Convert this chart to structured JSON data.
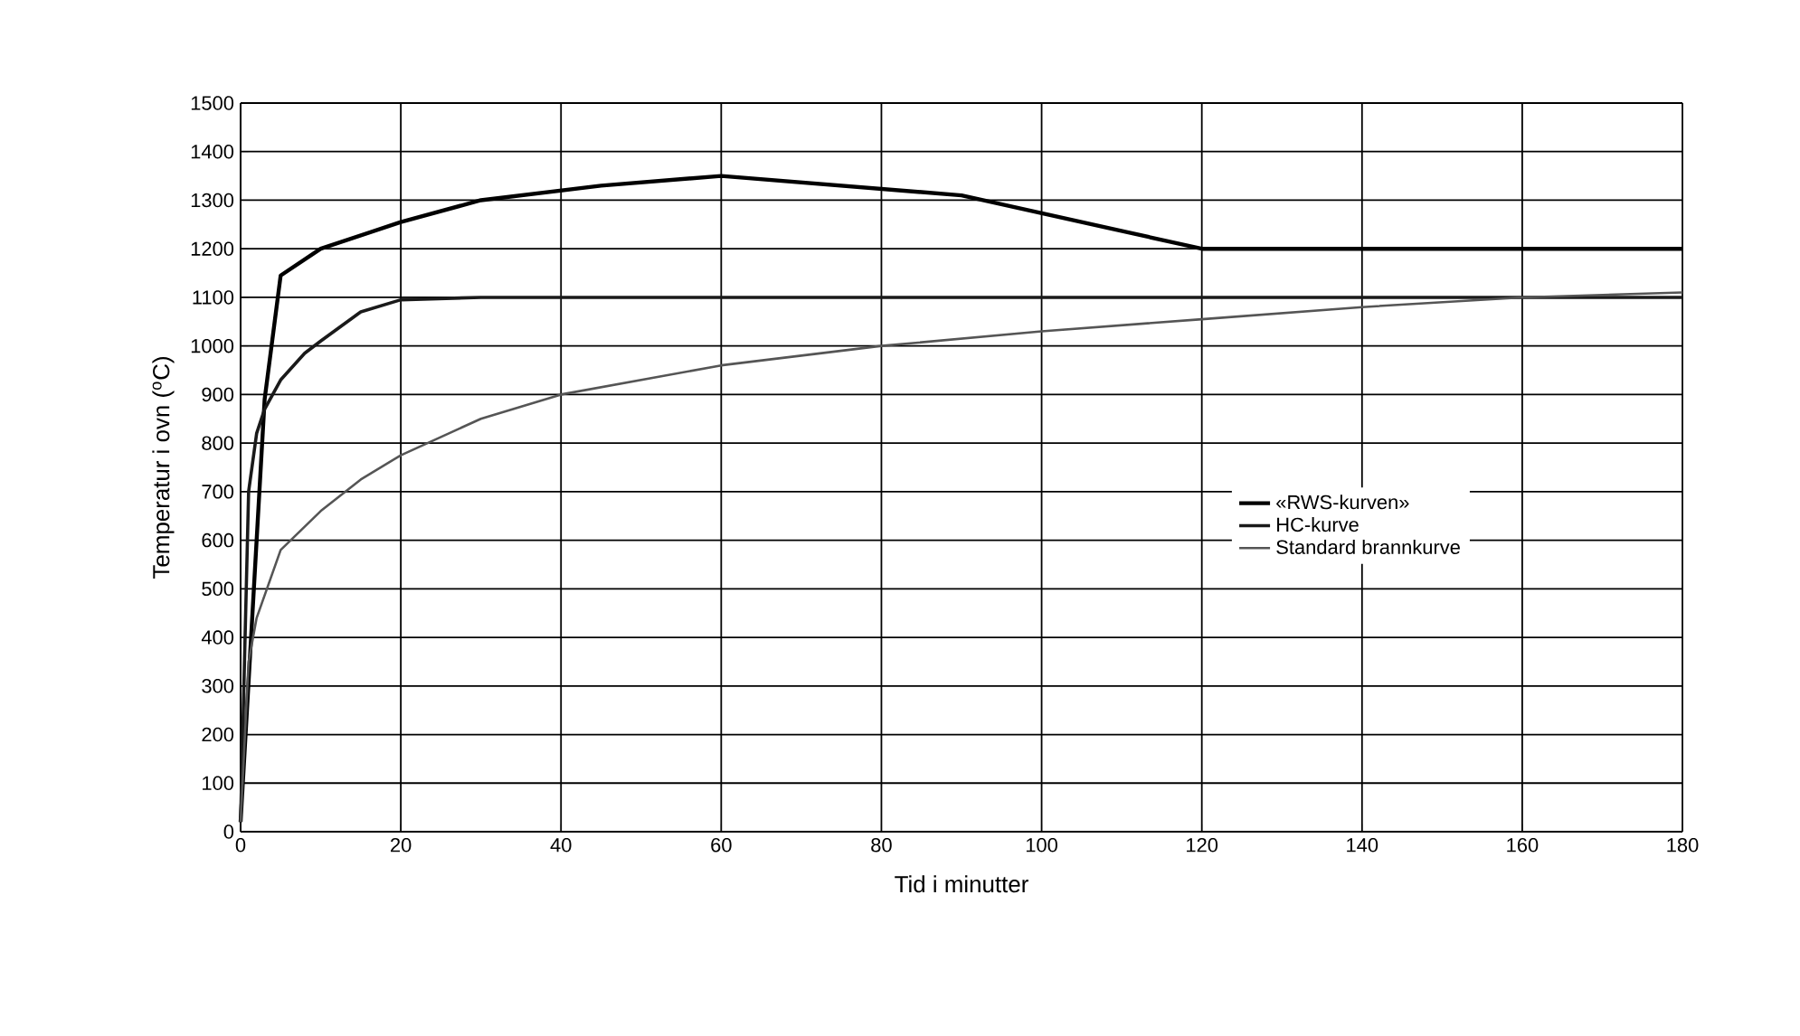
{
  "chart_data": {
    "type": "line",
    "xlabel": "Tid i minutter",
    "ylabel": "Temperatur i ovn ($^{o}$C)",
    "xlim": [
      0,
      180
    ],
    "xticks": [
      0,
      20,
      40,
      60,
      80,
      100,
      120,
      140,
      160,
      180
    ],
    "ylim": [
      0,
      1500
    ],
    "yticks": [
      0,
      100,
      200,
      300,
      400,
      500,
      600,
      700,
      800,
      900,
      1000,
      1100,
      1200,
      1300,
      1400,
      1500
    ],
    "grid": true,
    "legend": "right",
    "marker": "none",
    "line_style": "solid",
    "series": [
      {
        "name": "«RWS-kurven»",
        "color": "#000000",
        "x": [
          0,
          3,
          5,
          10,
          20,
          30,
          45,
          60,
          90,
          120,
          180
        ],
        "values": [
          20,
          890,
          1145,
          1200,
          1255,
          1300,
          1330,
          1350,
          1310,
          1200,
          1200
        ]
      },
      {
        "name": "HC-kurve",
        "color": "#1a1a1a",
        "x": [
          0,
          1,
          2,
          3,
          5,
          8,
          10,
          15,
          20,
          30,
          60,
          180
        ],
        "values": [
          20,
          700,
          820,
          870,
          930,
          985,
          1010,
          1070,
          1095,
          1100,
          1100,
          1100
        ]
      },
      {
        "name": "Standard brannkurve",
        "color": "#555555",
        "x": [
          0,
          1,
          2,
          5,
          10,
          15,
          20,
          30,
          40,
          60,
          80,
          100,
          120,
          140,
          160,
          180
        ],
        "values": [
          20,
          350,
          440,
          580,
          660,
          725,
          775,
          850,
          900,
          960,
          1000,
          1030,
          1055,
          1080,
          1100,
          1110
        ]
      }
    ]
  }
}
